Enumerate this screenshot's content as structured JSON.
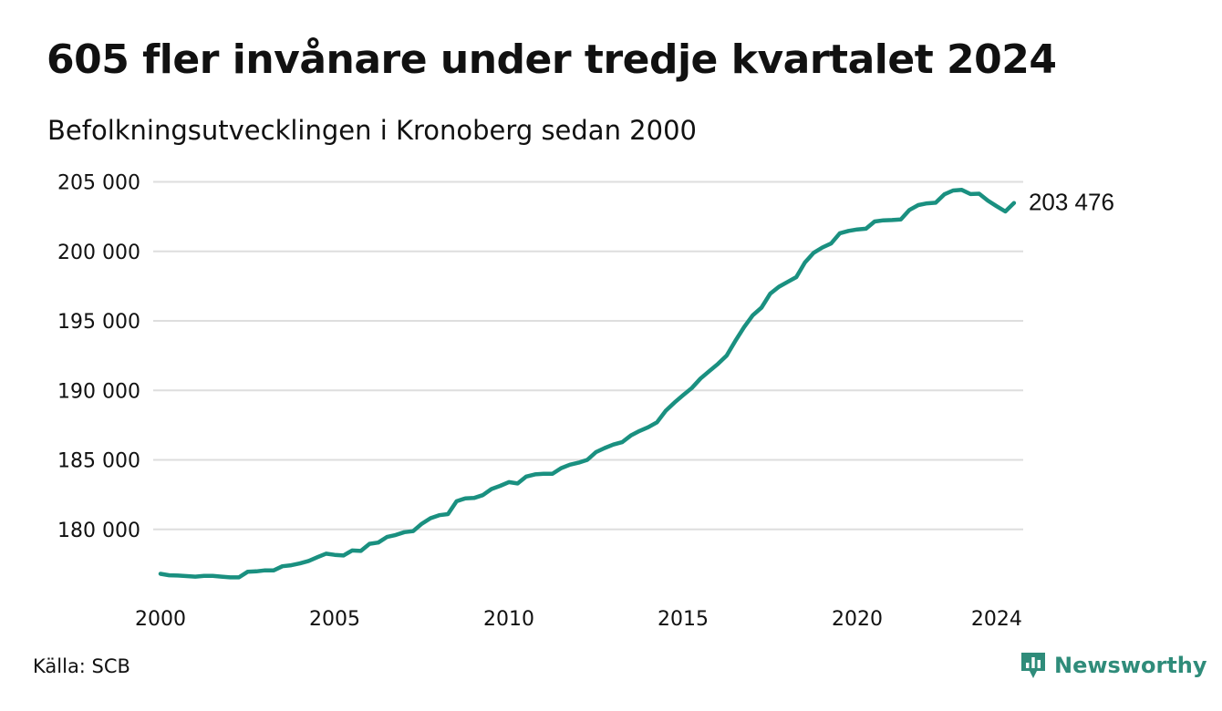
{
  "title": "605 fler invånare under tredje kvartalet 2024",
  "subtitle": "Befolkningsutvecklingen i Kronoberg sedan 2000",
  "source": "Källa: SCB",
  "brand": "Newsworthy",
  "colors": {
    "line": "#1a9080",
    "grid": "#dedede",
    "brand": "#2f8c7a"
  },
  "chart_data": {
    "type": "line",
    "ylim": [
      175000,
      205000
    ],
    "xlim": [
      2000.0,
      2024.75
    ],
    "y_ticks": [
      {
        "value": 180000,
        "label": "180 000"
      },
      {
        "value": 185000,
        "label": "185 000"
      },
      {
        "value": 190000,
        "label": "190 000"
      },
      {
        "value": 195000,
        "label": "195 000"
      },
      {
        "value": 200000,
        "label": "200 000"
      },
      {
        "value": 205000,
        "label": "205 000"
      }
    ],
    "x_ticks": [
      {
        "value": 2000,
        "label": "2000"
      },
      {
        "value": 2005,
        "label": "2005"
      },
      {
        "value": 2010,
        "label": "2010"
      },
      {
        "value": 2015,
        "label": "2015"
      },
      {
        "value": 2020,
        "label": "2020"
      },
      {
        "value": 2024,
        "label": "2024"
      }
    ],
    "grid": true,
    "end_label": "203 476",
    "series": [
      {
        "x": [
          2000.0,
          2000.25,
          2000.5,
          2000.75,
          2001.0,
          2001.25,
          2001.5,
          2001.75,
          2002.0,
          2002.25,
          2002.5,
          2002.75,
          2003.0,
          2003.25,
          2003.5,
          2003.75,
          2004.0,
          2004.25,
          2004.5,
          2004.75,
          2005.0,
          2005.25,
          2005.5,
          2005.75,
          2006.0,
          2006.25,
          2006.5,
          2006.75,
          2007.0,
          2007.25,
          2007.5,
          2007.75,
          2008.0,
          2008.25,
          2008.5,
          2008.75,
          2009.0,
          2009.25,
          2009.5,
          2009.75,
          2010.0,
          2010.25,
          2010.5,
          2010.75,
          2011.0,
          2011.25,
          2011.5,
          2011.75,
          2012.0,
          2012.25,
          2012.5,
          2012.75,
          2013.0,
          2013.25,
          2013.5,
          2013.75,
          2014.0,
          2014.25,
          2014.5,
          2014.75,
          2015.0,
          2015.25,
          2015.5,
          2015.75,
          2016.0,
          2016.25,
          2016.5,
          2016.75,
          2017.0,
          2017.25,
          2017.5,
          2017.75,
          2018.0,
          2018.25,
          2018.5,
          2018.75,
          2019.0,
          2019.25,
          2019.5,
          2019.75,
          2020.0,
          2020.25,
          2020.5,
          2020.75,
          2021.0,
          2021.25,
          2021.5,
          2021.75,
          2022.0,
          2022.25,
          2022.5,
          2022.75,
          2023.0,
          2023.25,
          2023.5,
          2023.75,
          2024.0,
          2024.25,
          2024.5
        ],
        "y": [
          176800,
          176700,
          176680,
          176640,
          176600,
          176650,
          176650,
          176600,
          176550,
          176550,
          176950,
          176980,
          177050,
          177050,
          177350,
          177420,
          177550,
          177730,
          178000,
          178250,
          178170,
          178120,
          178480,
          178450,
          178960,
          179050,
          179450,
          179600,
          179800,
          179870,
          180400,
          180800,
          181020,
          181100,
          182020,
          182230,
          182260,
          182460,
          182900,
          183130,
          183400,
          183300,
          183800,
          183960,
          184000,
          184000,
          184400,
          184650,
          184800,
          185000,
          185560,
          185850,
          186100,
          186270,
          186750,
          187080,
          187350,
          187700,
          188520,
          189120,
          189650,
          190170,
          190850,
          191380,
          191900,
          192500,
          193550,
          194550,
          195400,
          195950,
          196950,
          197450,
          197800,
          198150,
          199200,
          199900,
          200280,
          200570,
          201300,
          201470,
          201580,
          201630,
          202150,
          202230,
          202250,
          202290,
          202980,
          203330,
          203450,
          203500,
          204100,
          204380,
          204420,
          204120,
          204150,
          203650,
          203250,
          202870,
          203476
        ]
      }
    ]
  }
}
